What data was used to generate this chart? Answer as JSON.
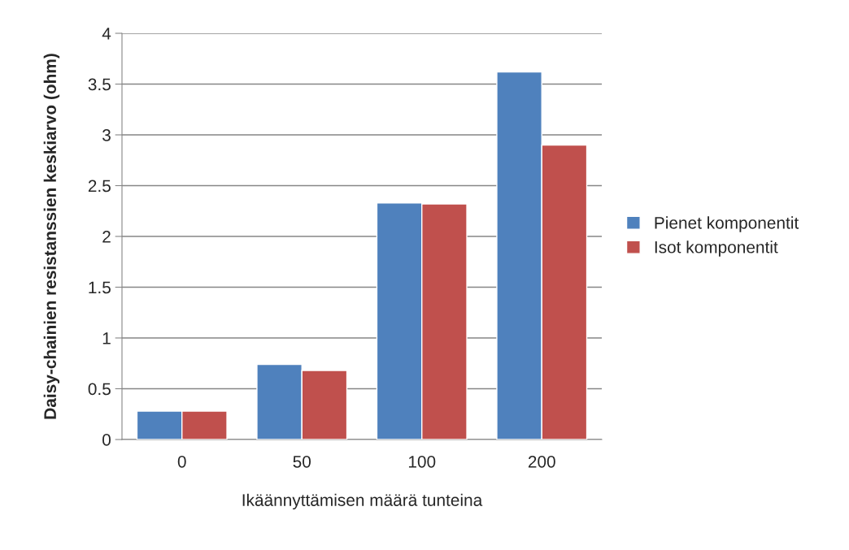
{
  "chart_data": {
    "type": "bar",
    "xlabel": "Ikäännyttämisen määrä tunteina",
    "ylabel": "Daisy-chainien resistanssien keskiarvo (ohm)",
    "categories": [
      "0",
      "50",
      "100",
      "200"
    ],
    "series": [
      {
        "name": "Pienet komponentit",
        "color": "#4f81bd",
        "values": [
          0.28,
          0.74,
          2.33,
          3.62
        ]
      },
      {
        "name": "Isot komponentit",
        "color": "#c0504d",
        "values": [
          0.28,
          0.68,
          2.32,
          2.9
        ]
      }
    ],
    "ylim": [
      0,
      4
    ],
    "yticks": [
      0,
      0.5,
      1,
      1.5,
      2,
      2.5,
      3,
      3.5,
      4
    ],
    "grid": "y",
    "legend": "right"
  }
}
